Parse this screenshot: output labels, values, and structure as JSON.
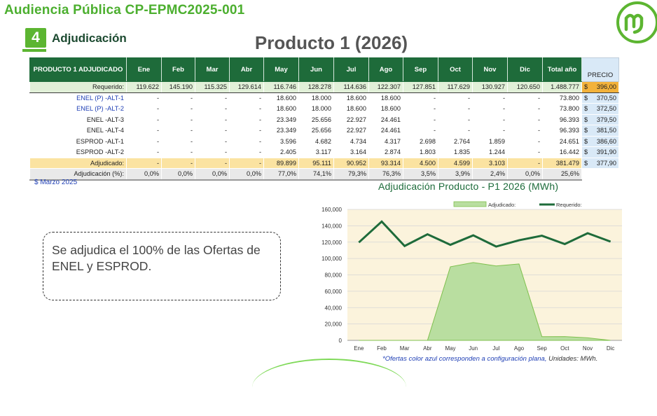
{
  "header": {
    "title": "Audiencia Pública CP-EPMC2025-001"
  },
  "section": {
    "number": "4",
    "label": "Adjudicación"
  },
  "product_title": "Producto 1 (2026)",
  "table": {
    "corner": "PRODUCTO 1 ADJUDICADO",
    "months": [
      "Ene",
      "Feb",
      "Mar",
      "Abr",
      "May",
      "Jun",
      "Jul",
      "Ago",
      "Sep",
      "Oct",
      "Nov",
      "Dic"
    ],
    "total_label": "Total año",
    "price_label": "PRECIO",
    "rows": [
      {
        "label": "Requerido:",
        "cls": "req",
        "vals": [
          "119.622",
          "145.190",
          "115.325",
          "129.614",
          "116.746",
          "128.278",
          "114.636",
          "122.307",
          "127.851",
          "117.629",
          "130.927",
          "120.650"
        ],
        "total": "1.488.777",
        "cur": "$",
        "price": "396,00"
      },
      {
        "label": "ENEL (P) -ALT-1",
        "cls": "blue",
        "vals": [
          "-",
          "-",
          "-",
          "-",
          "18.600",
          "18.000",
          "18.600",
          "18.600",
          "-",
          "-",
          "-",
          "-"
        ],
        "total": "73.800",
        "cur": "$",
        "price": "370,50"
      },
      {
        "label": "ENEL (P) -ALT-2",
        "cls": "blue",
        "vals": [
          "-",
          "-",
          "-",
          "-",
          "18.600",
          "18.000",
          "18.600",
          "18.600",
          "-",
          "-",
          "-",
          "-"
        ],
        "total": "73.800",
        "cur": "$",
        "price": "372,50"
      },
      {
        "label": "ENEL -ALT-3",
        "cls": "",
        "vals": [
          "-",
          "-",
          "-",
          "-",
          "23.349",
          "25.656",
          "22.927",
          "24.461",
          "-",
          "-",
          "-",
          "-"
        ],
        "total": "96.393",
        "cur": "$",
        "price": "379,50"
      },
      {
        "label": "ENEL -ALT-4",
        "cls": "",
        "vals": [
          "-",
          "-",
          "-",
          "-",
          "23.349",
          "25.656",
          "22.927",
          "24.461",
          "-",
          "-",
          "-",
          "-"
        ],
        "total": "96.393",
        "cur": "$",
        "price": "381,50"
      },
      {
        "label": "ESPROD -ALT-1",
        "cls": "",
        "vals": [
          "-",
          "-",
          "-",
          "-",
          "3.596",
          "4.682",
          "4.734",
          "4.317",
          "2.698",
          "2.764",
          "1.859",
          "-"
        ],
        "total": "24.651",
        "cur": "$",
        "price": "386,60"
      },
      {
        "label": "ESPROD -ALT-2",
        "cls": "",
        "vals": [
          "-",
          "-",
          "-",
          "-",
          "2.405",
          "3.117",
          "3.164",
          "2.874",
          "1.803",
          "1.835",
          "1.244",
          "-"
        ],
        "total": "16.442",
        "cur": "$",
        "price": "391,90"
      },
      {
        "label": "Adjudicado:",
        "cls": "adj",
        "vals": [
          "-",
          "-",
          "-",
          "-",
          "89.899",
          "95.111",
          "90.952",
          "93.314",
          "4.500",
          "4.599",
          "3.103",
          "-"
        ],
        "total": "381.479",
        "cur": "$",
        "price": "377,90"
      },
      {
        "label": "Adjudicación (%):",
        "cls": "pct",
        "vals": [
          "0,0%",
          "0,0%",
          "0,0%",
          "0,0%",
          "77,0%",
          "74,1%",
          "79,3%",
          "76,3%",
          "3,5%",
          "3,9%",
          "2,4%",
          "0,0%"
        ],
        "total": "25,6%",
        "cur": "",
        "price": ""
      }
    ]
  },
  "note": "$ Marzo 2025",
  "bubble_text": "Se adjudica el 100% de las Ofertas de ENEL y ESPROD.",
  "chart_data": {
    "type": "line",
    "title": "Adjudicación Producto - P1 2026 (MWh)",
    "categories": [
      "Ene",
      "Feb",
      "Mar",
      "Abr",
      "May",
      "Jun",
      "Jul",
      "Ago",
      "Sep",
      "Oct",
      "Nov",
      "Dic"
    ],
    "series": [
      {
        "name": "Adjudicado:",
        "kind": "area",
        "color": "#b9dea0",
        "values": [
          0,
          0,
          0,
          0,
          89899,
          95111,
          90952,
          93314,
          4500,
          4599,
          3103,
          0
        ]
      },
      {
        "name": "Requerido:",
        "kind": "line",
        "color": "#1e6b3a",
        "values": [
          119622,
          145190,
          115325,
          129614,
          116746,
          128278,
          114636,
          122307,
          127851,
          117629,
          130927,
          120650
        ]
      }
    ],
    "ylim": [
      0,
      160000
    ],
    "yticks": [
      "0",
      "20,000",
      "40,000",
      "60,000",
      "80,000",
      "100,000",
      "120,000",
      "140,000",
      "160,000"
    ],
    "legend": "top-center",
    "grid": true
  },
  "footnote": {
    "main": "*Ofertas color azul corresponden a configuración plana,",
    "units": " Unidades: MWh."
  }
}
